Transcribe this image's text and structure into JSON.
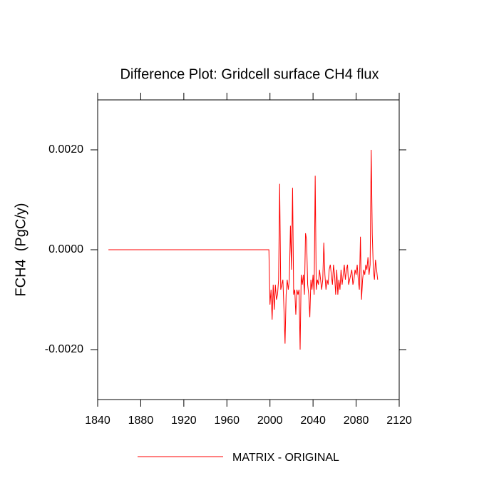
{
  "chart_data": {
    "type": "line",
    "title": "Difference Plot: Gridcell surface CH4 flux",
    "ylabel": "FCH4  (PgC/y)",
    "x": [
      1850,
      1999,
      2000,
      2001,
      2002,
      2003,
      2004,
      2005,
      2006,
      2007,
      2008,
      2009,
      2010,
      2011,
      2012,
      2013,
      2014,
      2015,
      2016,
      2017,
      2018,
      2019,
      2020,
      2021,
      2022,
      2023,
      2024,
      2025,
      2026,
      2027,
      2028,
      2029,
      2030,
      2031,
      2032,
      2033,
      2034,
      2035,
      2036,
      2037,
      2038,
      2039,
      2040,
      2041,
      2042,
      2043,
      2044,
      2045,
      2046,
      2047,
      2048,
      2049,
      2050,
      2051,
      2052,
      2053,
      2054,
      2055,
      2056,
      2057,
      2058,
      2059,
      2060,
      2061,
      2062,
      2063,
      2064,
      2065,
      2066,
      2067,
      2068,
      2069,
      2070,
      2071,
      2072,
      2073,
      2074,
      2075,
      2076,
      2077,
      2078,
      2079,
      2080,
      2081,
      2082,
      2083,
      2084,
      2085,
      2086,
      2087,
      2088,
      2089,
      2090,
      2091,
      2092,
      2093,
      2094,
      2095,
      2096,
      2097,
      2098,
      2099,
      2100
    ],
    "series": [
      {
        "name": "MATRIX - ORIGINAL",
        "color": "#ff0000",
        "values": [
          0,
          0,
          -0.0011,
          -0.0008,
          -0.0014,
          -0.0007,
          -0.0012,
          -0.0007,
          -0.001,
          -0.0009,
          -0.0006,
          0.00132,
          -0.0008,
          -0.0007,
          -0.0006,
          -0.0012,
          -0.00188,
          -0.0009,
          -0.0006,
          -0.0008,
          -0.0006,
          0.00048,
          -0.0004,
          0.00124,
          -0.0009,
          -0.0008,
          -0.0013,
          -0.0008,
          -0.0009,
          -0.0008,
          -0.002,
          -0.0005,
          -0.0007,
          -0.0005,
          -0.0009,
          0.00033,
          0.0002,
          -0.0007,
          -0.0009,
          -0.00135,
          -0.0006,
          -0.0008,
          -0.0005,
          -0.0009,
          0.00148,
          -0.0008,
          -0.0006,
          -0.0007,
          -0.0004,
          -0.0006,
          -0.0008,
          -0.0006,
          0.00014,
          -0.0005,
          -0.0008,
          -0.0006,
          -0.0007,
          -0.0004,
          -0.0003,
          -0.0005,
          -0.0007,
          -0.0003,
          -0.0005,
          -0.0009,
          -0.0004,
          -0.0009,
          -0.0006,
          -0.0008,
          -0.0004,
          -0.0007,
          -0.0005,
          -0.0003,
          -0.0006,
          -0.0004,
          -0.0003,
          -0.0007,
          -0.0006,
          -0.0005,
          -0.0004,
          -0.0007,
          -0.0006,
          -0.0004,
          -0.0005,
          -0.0003,
          -0.0006,
          -0.0008,
          0.00026,
          -0.001,
          -0.0006,
          -0.0004,
          -0.0005,
          -0.0003,
          -0.0004,
          -0.00015,
          -0.0005,
          -0.0003,
          0.002,
          0.0003,
          -0.0004,
          -0.0006,
          -0.0002,
          -0.0004,
          -0.0006
        ]
      }
    ],
    "xlim": [
      1840,
      2120
    ],
    "xticks": [
      1840,
      1880,
      1920,
      1960,
      2000,
      2040,
      2080,
      2120
    ],
    "ylim": [
      -0.003,
      0.003
    ],
    "yticks": [
      {
        "value": -0.002,
        "label": "-0.0020"
      },
      {
        "value": 0,
        "label": "0.0000"
      },
      {
        "value": 0.002,
        "label": "0.0020"
      }
    ]
  }
}
